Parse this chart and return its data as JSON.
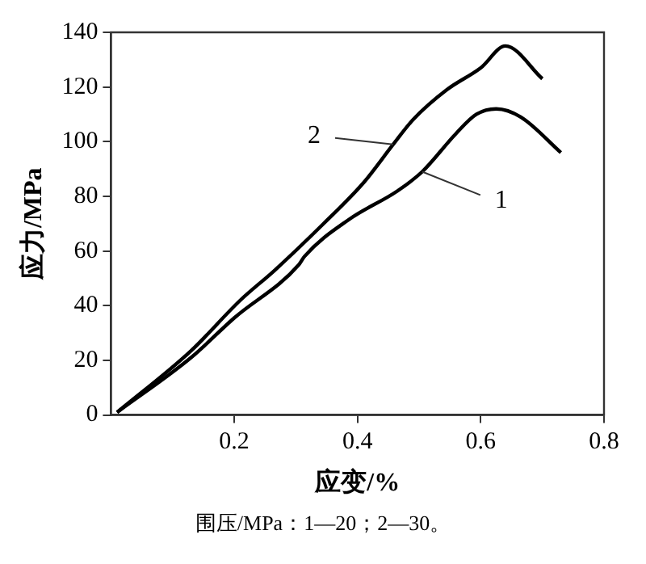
{
  "chart_data": {
    "type": "line",
    "xlabel": "应变/%",
    "ylabel": "应力/MPa",
    "xlim": [
      0,
      0.8
    ],
    "xticks": [
      0.2,
      0.4,
      0.6,
      0.8
    ],
    "ylim": [
      0,
      140
    ],
    "yticks": [
      0,
      20,
      40,
      60,
      80,
      100,
      120,
      140
    ],
    "grid": false,
    "legend": false,
    "marker": "none",
    "line_style": "solid",
    "series": [
      {
        "color": "#000000",
        "x": [
          0.01,
          0.13,
          0.2,
          0.305,
          0.314,
          0.386,
          0.465,
          0.505,
          0.56,
          0.593,
          0.625,
          0.665,
          0.73
        ],
        "values": [
          1,
          21,
          35.5,
          55,
          58,
          71.5,
          82,
          89,
          103,
          110,
          112,
          109,
          96
        ]
      },
      {
        "color": "#000000",
        "x": [
          0.01,
          0.13,
          0.21,
          0.266,
          0.345,
          0.41,
          0.458,
          0.49,
          0.545,
          0.6,
          0.64,
          0.7
        ],
        "values": [
          1,
          23.5,
          42,
          53,
          70,
          85,
          99,
          108,
          119,
          127,
          135,
          123
        ]
      }
    ],
    "annotations": [
      {
        "text": "2",
        "x": 0.458,
        "y": 99
      },
      {
        "text": "1",
        "x": 0.505,
        "y": 89
      },
      "围压/MPa：1—20；2—30。"
    ]
  }
}
